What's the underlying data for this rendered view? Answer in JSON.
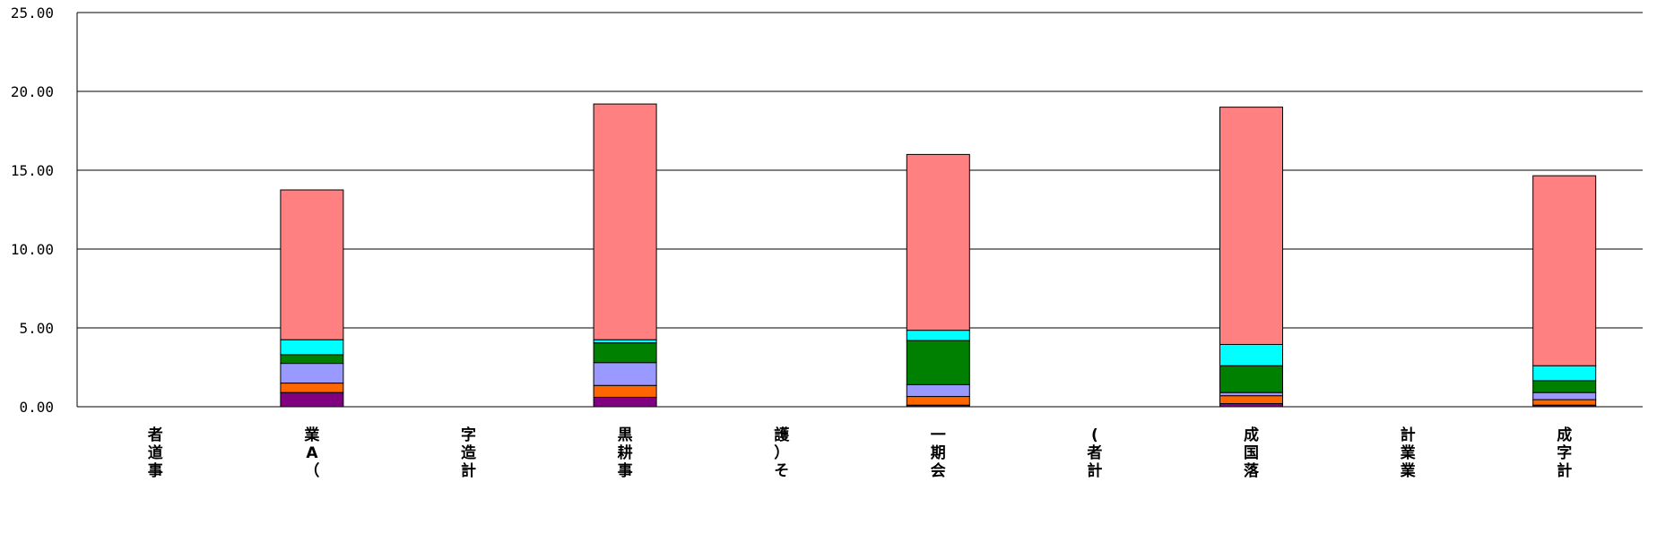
{
  "chart_data": {
    "type": "bar",
    "stacked": true,
    "title": "",
    "xlabel": "",
    "ylabel": "",
    "ylim": [
      0,
      25
    ],
    "yticks": [
      "0.00",
      "5.00",
      "10.00",
      "15.00",
      "20.00",
      "25.00"
    ],
    "grid": true,
    "legend": "none",
    "categories": [
      "者道事",
      "業A（",
      "字造計",
      "黒耕事",
      "護）そ",
      "一期会",
      "(者計",
      "成国落",
      "計業業",
      "成字計"
    ],
    "series": [
      {
        "color": "#800080",
        "values": [
          0,
          0.9,
          0,
          0.6,
          0,
          0.1,
          0,
          0.2,
          0,
          0.1
        ]
      },
      {
        "color": "#ff6600",
        "values": [
          0,
          0.6,
          0,
          0.75,
          0,
          0.55,
          0,
          0.5,
          0,
          0.35
        ]
      },
      {
        "color": "#9999ff",
        "values": [
          0,
          1.25,
          0,
          1.45,
          0,
          0.75,
          0,
          0.2,
          0,
          0.45
        ]
      },
      {
        "color": "#008000",
        "values": [
          0,
          0.55,
          0,
          1.25,
          0,
          2.8,
          0,
          1.7,
          0,
          0.75
        ]
      },
      {
        "color": "#00ffff",
        "values": [
          0,
          0.95,
          0,
          0.2,
          0,
          0.65,
          0,
          1.35,
          0,
          0.95
        ]
      },
      {
        "color": "#ff8080",
        "values": [
          0,
          9.5,
          0,
          14.95,
          0,
          11.15,
          0,
          15.05,
          0,
          12.05
        ]
      }
    ]
  }
}
